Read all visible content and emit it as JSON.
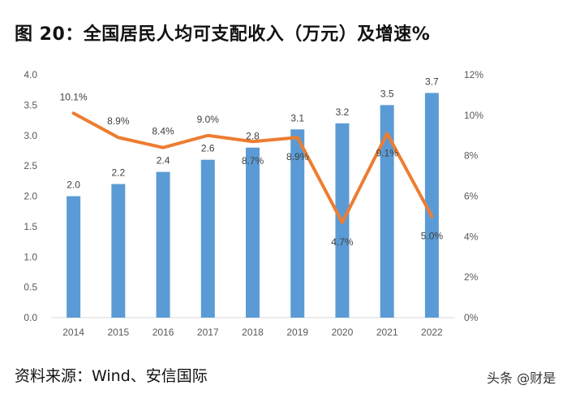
{
  "title": "图 20：全国居民人均可支配收入（万元）及增速%",
  "source": "资料来源：Wind、安信国际",
  "watermark": "头条 @财是",
  "colors": {
    "bar": "#5b9bd5",
    "line": "#ed7d31",
    "axis_text": "#595959",
    "axis_line": "#d9d9d9"
  },
  "chart_data": {
    "type": "bar",
    "categories": [
      "2014",
      "2015",
      "2016",
      "2017",
      "2018",
      "2019",
      "2020",
      "2021",
      "2022"
    ],
    "series": [
      {
        "type": "bar",
        "axis": "left",
        "values": [
          2.0,
          2.2,
          2.4,
          2.6,
          2.8,
          3.1,
          3.2,
          3.5,
          3.7
        ],
        "labels": [
          "2.0",
          "2.2",
          "2.4",
          "2.6",
          "2.8",
          "3.1",
          "3.2",
          "3.5",
          "3.7"
        ]
      },
      {
        "type": "line",
        "axis": "right",
        "values": [
          10.1,
          8.9,
          8.4,
          9.0,
          8.7,
          8.9,
          4.7,
          9.1,
          5.0
        ],
        "labels": [
          "10.1%",
          "8.9%",
          "8.4%",
          "9.0%",
          "8.7%",
          "8.9%",
          "4.7%",
          "9.1%",
          "5.0%"
        ]
      }
    ],
    "y_left": {
      "min": 0,
      "max": 4.0,
      "ticks": [
        "0.0",
        "0.5",
        "1.0",
        "1.5",
        "2.0",
        "2.5",
        "3.0",
        "3.5",
        "4.0"
      ]
    },
    "y_right": {
      "min": 0,
      "max": 12,
      "ticks": [
        "0%",
        "2%",
        "4%",
        "6%",
        "8%",
        "10%",
        "12%"
      ]
    },
    "grid": false,
    "legend": "none"
  }
}
